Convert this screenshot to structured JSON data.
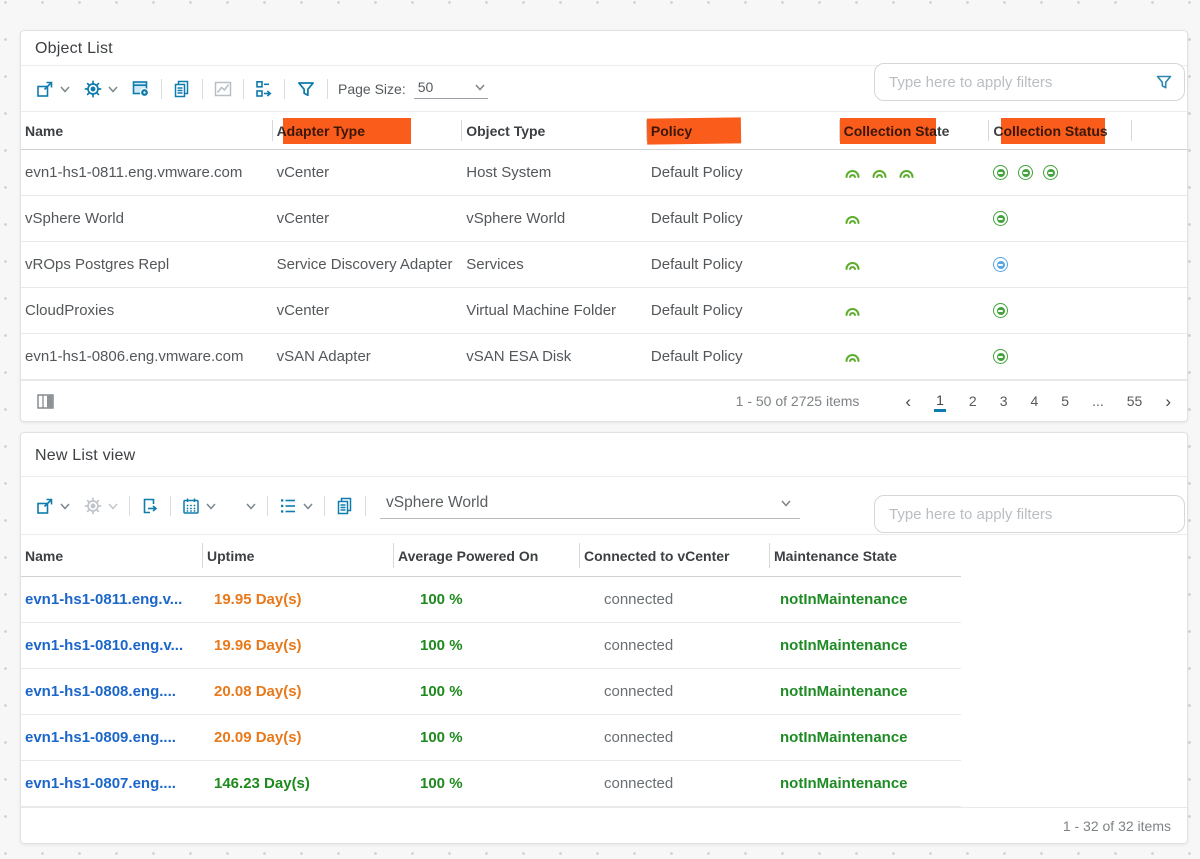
{
  "object_list": {
    "title": "Object List",
    "toolbar": {
      "page_size_label": "Page Size:",
      "page_size_value": "50"
    },
    "filter_placeholder": "Type here to apply filters",
    "columns": {
      "name": "Name",
      "adapter_type": "Adapter Type",
      "object_type": "Object Type",
      "policy": "Policy",
      "collection_state": "Collection State",
      "collection_status": "Collection Status"
    },
    "rows": [
      {
        "name": "evn1-hs1-0811.eng.vmware.com",
        "adapter_type": "vCenter",
        "object_type": "Host System",
        "policy": "Default Policy",
        "collection_state": [
          "collecting",
          "collecting",
          "collecting"
        ],
        "collection_status": [
          "ok",
          "ok",
          "ok"
        ]
      },
      {
        "name": "vSphere World",
        "adapter_type": "vCenter",
        "object_type": "vSphere World",
        "policy": "Default Policy",
        "collection_state": [
          "collecting"
        ],
        "collection_status": [
          "ok"
        ]
      },
      {
        "name": "vROps Postgres Repl",
        "adapter_type": "Service Discovery Adapter",
        "object_type": "Services",
        "policy": "Default Policy",
        "collection_state": [
          "collecting"
        ],
        "collection_status": [
          "info"
        ]
      },
      {
        "name": "CloudProxies",
        "adapter_type": "vCenter",
        "object_type": "Virtual Machine Folder",
        "policy": "Default Policy",
        "collection_state": [
          "collecting"
        ],
        "collection_status": [
          "ok"
        ]
      },
      {
        "name": "evn1-hs1-0806.eng.vmware.com",
        "adapter_type": "vSAN Adapter",
        "object_type": "vSAN ESA Disk",
        "policy": "Default Policy",
        "collection_state": [
          "collecting"
        ],
        "collection_status": [
          "ok"
        ]
      }
    ],
    "footer": {
      "range_text": "1 - 50 of 2725 items",
      "prev_label": "‹",
      "next_label": "›",
      "pages": [
        "1",
        "2",
        "3",
        "4",
        "5",
        "...",
        "55"
      ],
      "current_page": "1"
    }
  },
  "new_list_view": {
    "title": "New List view",
    "toolbar": {
      "object_selector_value": "vSphere World"
    },
    "filter_placeholder": "Type here to apply filters",
    "columns": {
      "name": "Name",
      "uptime": "Uptime",
      "avg_powered_on": "Average Powered On",
      "connected": "Connected to vCenter",
      "maintenance": "Maintenance State"
    },
    "rows": [
      {
        "name": "evn1-hs1-0811.eng.v...",
        "uptime": "19.95 Day(s)",
        "uptime_variant": "warn",
        "avg_powered_on": "100 %",
        "connected": "connected",
        "maintenance": "notInMaintenance"
      },
      {
        "name": "evn1-hs1-0810.eng.v...",
        "uptime": "19.96 Day(s)",
        "uptime_variant": "warn",
        "avg_powered_on": "100 %",
        "connected": "connected",
        "maintenance": "notInMaintenance"
      },
      {
        "name": "evn1-hs1-0808.eng....",
        "uptime": "20.08 Day(s)",
        "uptime_variant": "warn",
        "avg_powered_on": "100 %",
        "connected": "connected",
        "maintenance": "notInMaintenance"
      },
      {
        "name": "evn1-hs1-0809.eng....",
        "uptime": "20.09 Day(s)",
        "uptime_variant": "warn",
        "avg_powered_on": "100 %",
        "connected": "connected",
        "maintenance": "notInMaintenance"
      },
      {
        "name": "evn1-hs1-0807.eng....",
        "uptime": "146.23 Day(s)",
        "uptime_variant": "good",
        "avg_powered_on": "100 %",
        "connected": "connected",
        "maintenance": "notInMaintenance"
      }
    ],
    "footer": {
      "range_text": "1 - 32 of 32 items"
    }
  },
  "colors": {
    "accent_blue": "#0e7cad",
    "highlight_orange": "#fa5c1c",
    "warn_orange": "#e8791b",
    "good_green": "#1e8a1e",
    "link_blue": "#1b66c9",
    "state_green": "#5ead2e",
    "status_green": "#43a33c",
    "status_blue": "#57a7e4"
  }
}
